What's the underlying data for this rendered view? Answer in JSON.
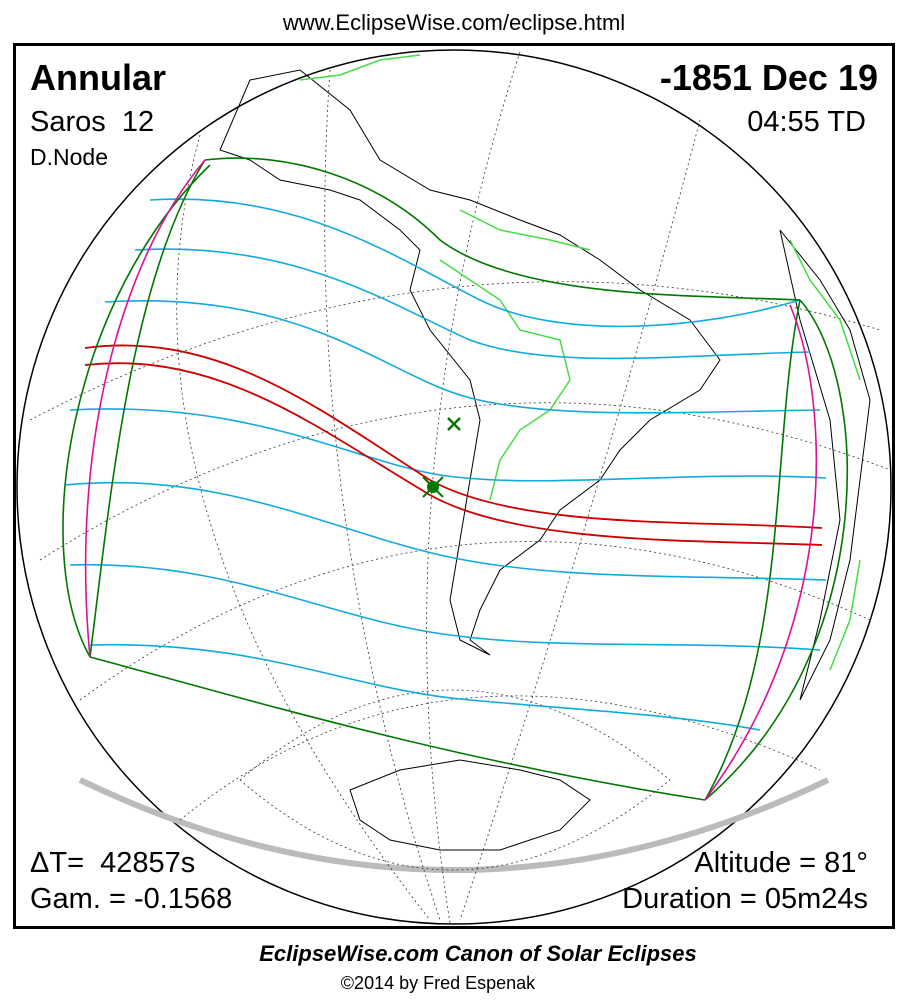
{
  "header": {
    "url": "www.EclipseWise.com/eclipse.html"
  },
  "info": {
    "eclipse_type": "Annular",
    "saros": "Saros  12",
    "node": "D.Node",
    "date": "-1851 Dec 19",
    "time": "04:55 TD",
    "delta_t": "ΔT=  42857s",
    "gamma": "Gam. = -0.1568",
    "altitude": "Altitude = 81°",
    "duration": "Duration = 05m24s"
  },
  "footer": {
    "title": "EclipseWise.com Canon of Solar Eclipses",
    "copyright": "©2014 by Fred Espenak"
  }
}
